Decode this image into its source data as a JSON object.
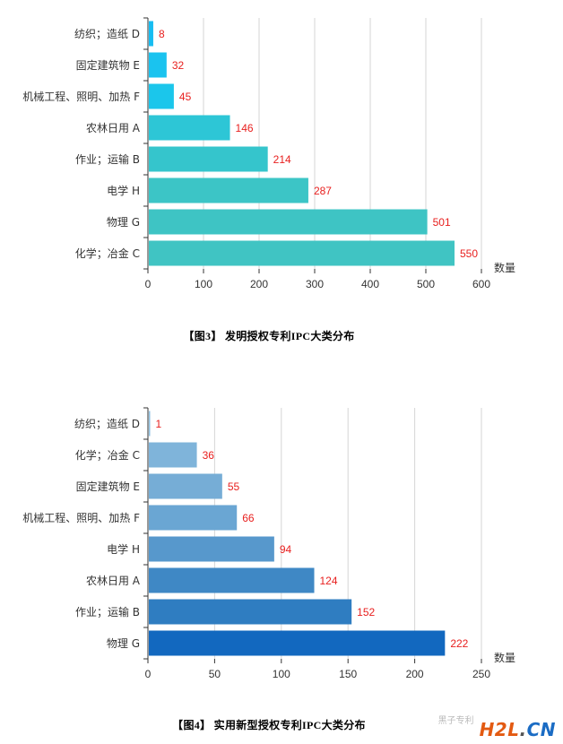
{
  "charts": [
    {
      "type": "bar",
      "orientation": "horizontal",
      "categories": [
        "纺织；造纸 D",
        "固定建筑物 E",
        "机械工程、照明、加热 F",
        "农林日用 A",
        "作业；运输 B",
        "电学 H",
        "物理 G",
        "化学；冶金 C"
      ],
      "values": [
        8,
        32,
        45,
        146,
        214,
        287,
        501,
        550
      ],
      "xlabel": "数量",
      "xlim": [
        0,
        600
      ],
      "xticks": [
        0,
        100,
        200,
        300,
        400,
        500,
        600
      ],
      "grid": "vertical",
      "colors": [
        "#17bdf2",
        "#1ac3ef",
        "#1bc6eb",
        "#2dc6d6",
        "#35c5cc",
        "#3cc5c6",
        "#3ec4c4",
        "#40c4c3"
      ],
      "label_color": "#e8201f",
      "caption": "【图3】 发明授权专利IPC大类分布"
    },
    {
      "type": "bar",
      "orientation": "horizontal",
      "categories": [
        "纺织；造纸 D",
        "化学；冶金 C",
        "固定建筑物 E",
        "机械工程、照明、加热 F",
        "电学 H",
        "农林日用 A",
        "作业；运输 B",
        "物理 G"
      ],
      "values": [
        1,
        36,
        55,
        66,
        94,
        124,
        152,
        222
      ],
      "xlabel": "数量",
      "xlim": [
        0,
        250
      ],
      "xticks": [
        0,
        50,
        100,
        150,
        200,
        250
      ],
      "grid": "vertical",
      "colors": [
        "#8fc0e0",
        "#7fb4da",
        "#76add6",
        "#6aa6d3",
        "#5798cc",
        "#3f88c5",
        "#2f7dc1",
        "#1268bf"
      ],
      "label_color": "#e8201f",
      "caption": "【图4】 实用新型授权专利IPC大类分布"
    }
  ],
  "watermark": {
    "sub": "黑子专利",
    "h2l": "H2L",
    "dot": ".",
    "cn": "CN"
  }
}
